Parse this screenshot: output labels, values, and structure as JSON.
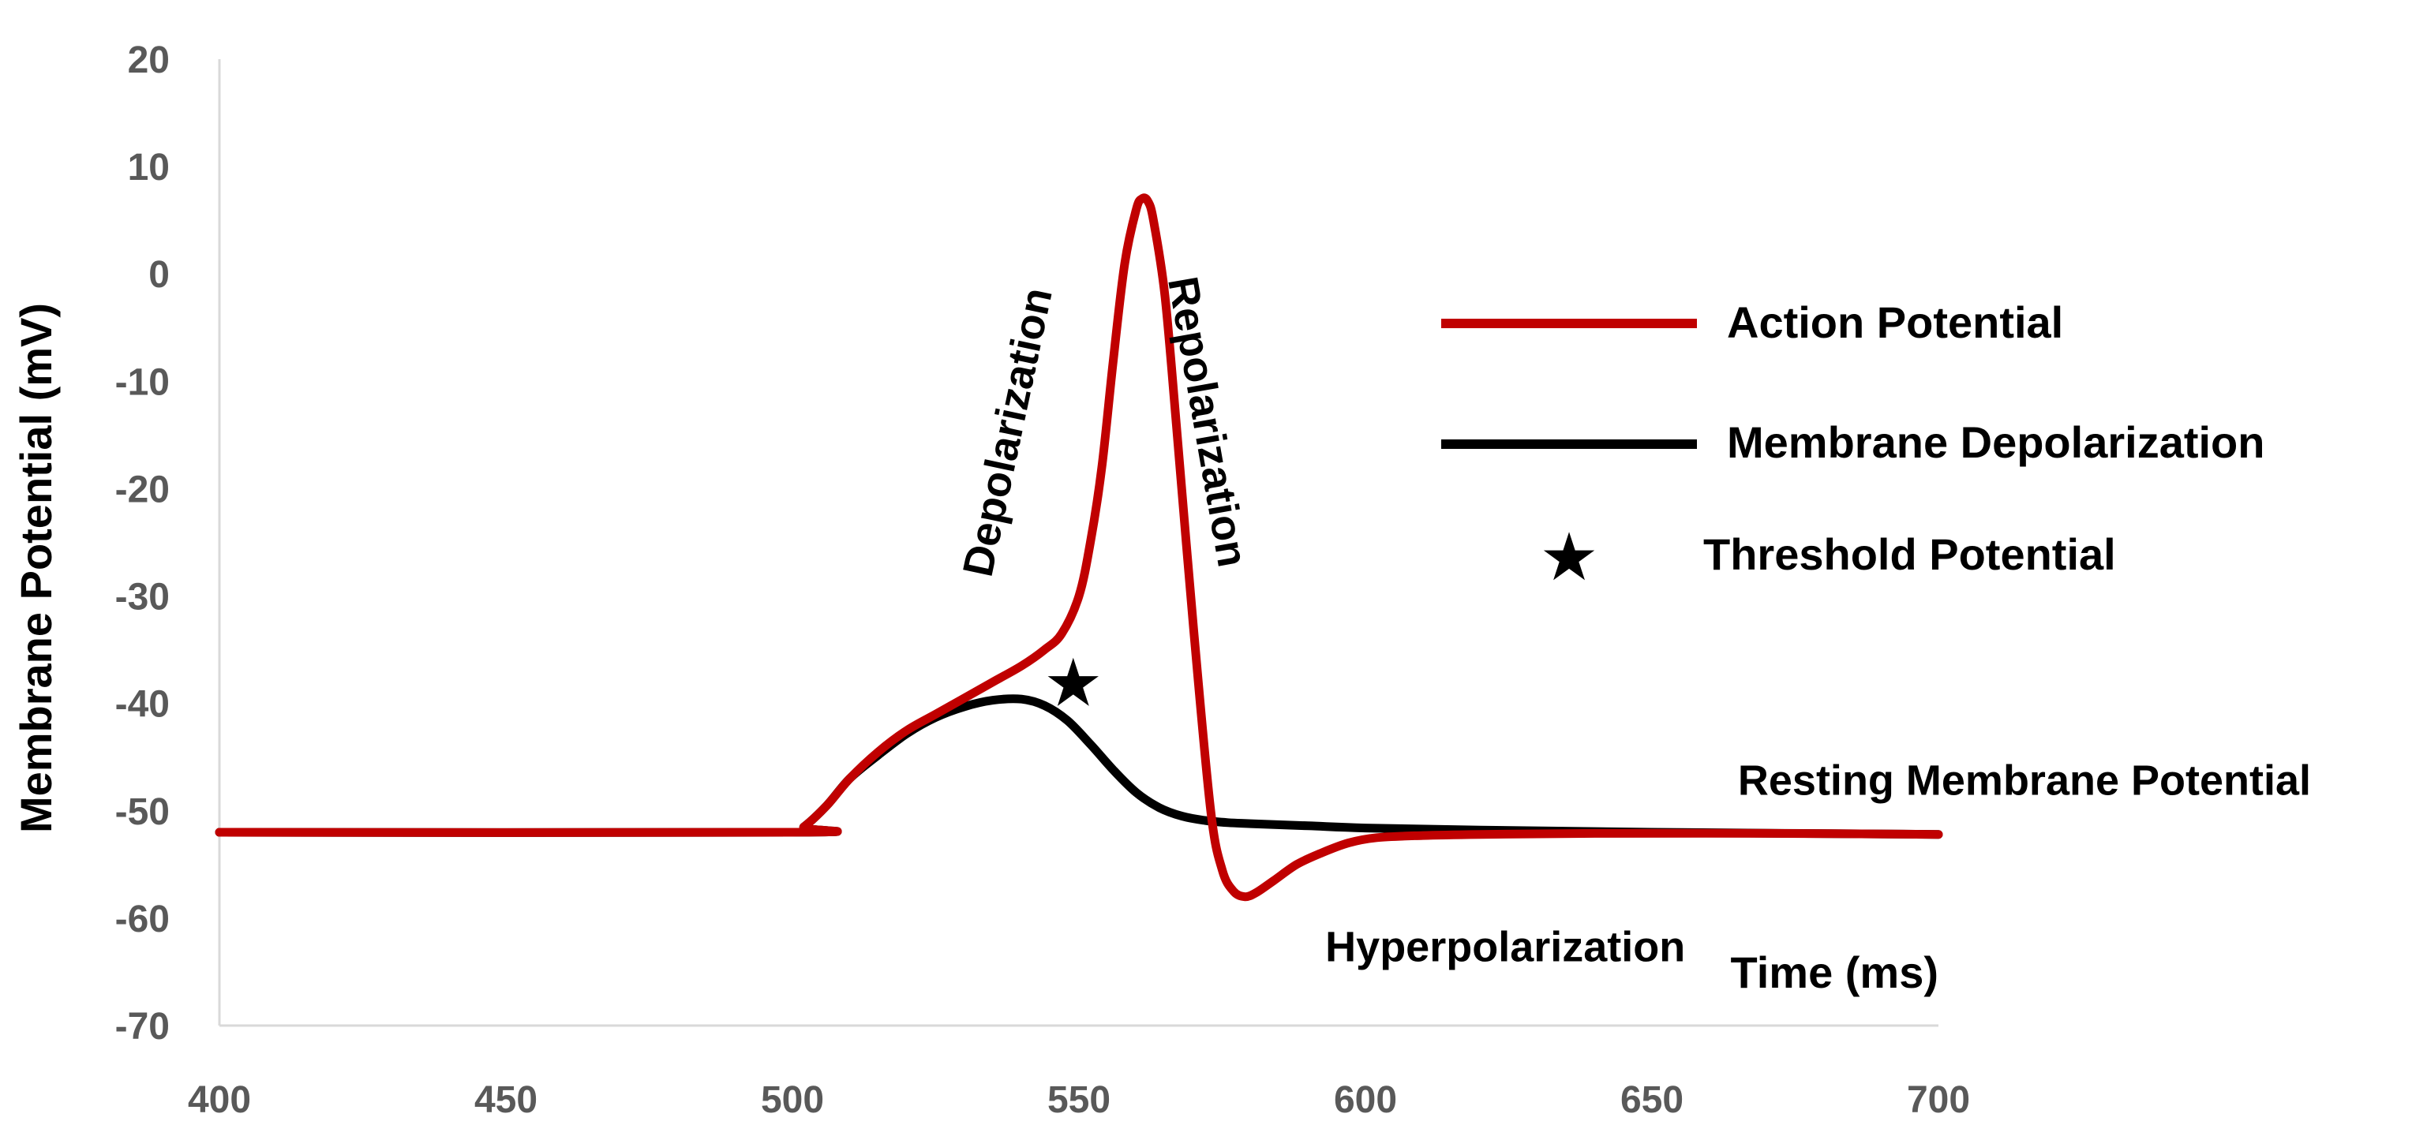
{
  "chart_data": {
    "type": "line",
    "title": "",
    "xlabel": "Time (ms)",
    "ylabel": "Membrane Potential (mV)",
    "xlim": [
      400,
      700
    ],
    "ylim": [
      -70,
      20
    ],
    "xticks": [
      400,
      450,
      500,
      550,
      600,
      650,
      700
    ],
    "yticks": [
      20,
      10,
      0,
      -10,
      -20,
      -30,
      -40,
      -50,
      -60,
      -70
    ],
    "grid": false,
    "legend_position": "right",
    "series": [
      {
        "name": "Action Potential",
        "color": "#C00000",
        "x": [
          400,
          500,
          502,
          506,
          510,
          515,
          520,
          525,
          530,
          535,
          540,
          544,
          547,
          550,
          552,
          554,
          556,
          558,
          560,
          561,
          562,
          563,
          565,
          567,
          570,
          573,
          575,
          577,
          579,
          581,
          584,
          588,
          592,
          597,
          602,
          610,
          620,
          640,
          670,
          700
        ],
        "y": [
          -52,
          -52,
          -51.5,
          -49.5,
          -47,
          -44.5,
          -42.5,
          -41,
          -39.5,
          -38,
          -36.5,
          -35,
          -33.5,
          -30,
          -25,
          -18,
          -8,
          1,
          6,
          7,
          6.8,
          5,
          -2,
          -14,
          -33,
          -50,
          -55.5,
          -57.5,
          -58,
          -57.6,
          -56.5,
          -55,
          -54,
          -53,
          -52.5,
          -52.3,
          -52.2,
          -52.1,
          -52.1,
          -52.2
        ]
      },
      {
        "name": "Membrane Depolarization",
        "color": "#000000",
        "x": [
          400,
          500,
          502,
          506,
          510,
          515,
          520,
          525,
          530,
          535,
          540,
          544,
          548,
          552,
          556,
          560,
          564,
          568,
          572,
          576,
          580,
          590,
          600,
          620,
          650,
          700
        ],
        "y": [
          -52,
          -52,
          -51.5,
          -49.5,
          -47,
          -44.8,
          -42.8,
          -41.3,
          -40.3,
          -39.7,
          -39.6,
          -40.2,
          -41.6,
          -43.8,
          -46.2,
          -48.3,
          -49.7,
          -50.5,
          -50.9,
          -51.1,
          -51.2,
          -51.4,
          -51.6,
          -51.8,
          -52,
          -52.2
        ]
      }
    ],
    "threshold_point": {
      "name": "Threshold Potential",
      "x": 549,
      "y": -38,
      "marker": "★"
    },
    "annotations": [
      {
        "text": "Depolarization",
        "x": 540,
        "y": -15,
        "rotation": -78
      },
      {
        "text": "Repolarization",
        "x": 570,
        "y": -14,
        "rotation": 80
      },
      {
        "text": "Resting Membrane Potential",
        "x": 665,
        "y": -48.5
      },
      {
        "text": "Hyperpolarization",
        "x": 593,
        "y": -64
      }
    ]
  }
}
